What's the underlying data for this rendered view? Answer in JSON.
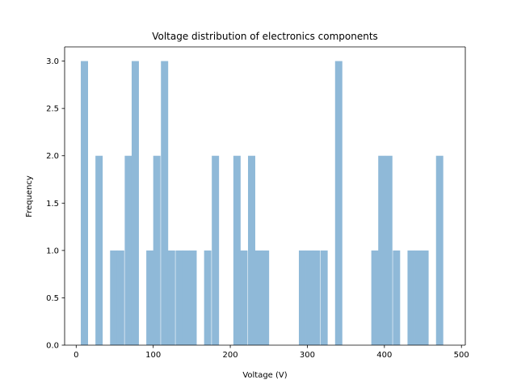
{
  "chart_data": {
    "type": "bar",
    "title": "Voltage distribution of electronics components",
    "xlabel": "Voltage (V)",
    "ylabel": "Frequency",
    "xlim": [
      -15,
      505
    ],
    "ylim": [
      0,
      3.15
    ],
    "xticks": [
      0,
      100,
      200,
      300,
      400,
      500
    ],
    "yticks": [
      0.0,
      0.5,
      1.0,
      1.5,
      2.0,
      2.5,
      3.0
    ],
    "ytick_labels": [
      "0.0",
      "0.5",
      "1.0",
      "1.5",
      "2.0",
      "2.5",
      "3.0"
    ],
    "bin_width": 9.4,
    "bins": [
      {
        "x0": 6.0,
        "count": 3
      },
      {
        "x0": 25.0,
        "count": 2
      },
      {
        "x0": 44.0,
        "count": 1
      },
      {
        "x0": 53.0,
        "count": 1
      },
      {
        "x0": 63.0,
        "count": 2
      },
      {
        "x0": 72.0,
        "count": 3
      },
      {
        "x0": 91.0,
        "count": 1
      },
      {
        "x0": 100.0,
        "count": 2
      },
      {
        "x0": 110.0,
        "count": 3
      },
      {
        "x0": 119.0,
        "count": 1
      },
      {
        "x0": 129.0,
        "count": 1
      },
      {
        "x0": 138.0,
        "count": 1
      },
      {
        "x0": 147.0,
        "count": 1
      },
      {
        "x0": 166.0,
        "count": 1
      },
      {
        "x0": 176.0,
        "count": 2
      },
      {
        "x0": 204.0,
        "count": 2
      },
      {
        "x0": 213.0,
        "count": 1
      },
      {
        "x0": 223.0,
        "count": 2
      },
      {
        "x0": 232.0,
        "count": 1
      },
      {
        "x0": 241.0,
        "count": 1
      },
      {
        "x0": 289.0,
        "count": 1
      },
      {
        "x0": 298.0,
        "count": 1
      },
      {
        "x0": 307.0,
        "count": 1
      },
      {
        "x0": 317.0,
        "count": 1
      },
      {
        "x0": 336.0,
        "count": 3
      },
      {
        "x0": 383.0,
        "count": 1
      },
      {
        "x0": 392.0,
        "count": 2
      },
      {
        "x0": 401.0,
        "count": 2
      },
      {
        "x0": 411.0,
        "count": 1
      },
      {
        "x0": 430.0,
        "count": 1
      },
      {
        "x0": 439.0,
        "count": 1
      },
      {
        "x0": 448.0,
        "count": 1
      },
      {
        "x0": 467.0,
        "count": 2
      }
    ],
    "bar_color": "#8fb9d8",
    "grid": false,
    "legend": "none"
  }
}
